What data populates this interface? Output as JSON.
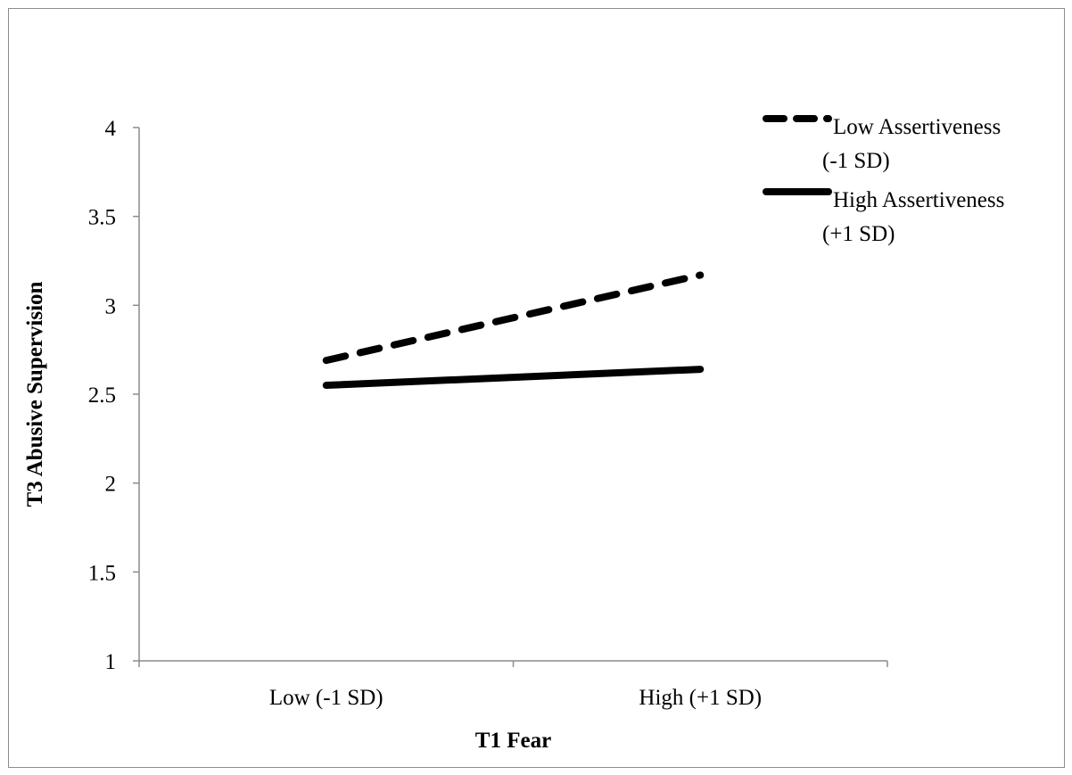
{
  "chart_data": {
    "type": "line",
    "title": "",
    "xlabel": "T1 Fear",
    "ylabel": "T3 Abusive Supervision",
    "categories": [
      "Low (-1 SD)",
      "High (+1 SD)"
    ],
    "ylim": [
      1,
      4
    ],
    "yticks": [
      "1",
      "1.5",
      "2",
      "2.5",
      "3",
      "3.5",
      "4"
    ],
    "yticks_values": [
      1,
      1.5,
      2,
      2.5,
      3,
      3.5,
      4
    ],
    "grid": false,
    "legend_position": "top-right",
    "series": [
      {
        "name": "Low Assertiveness (-1 SD)",
        "name_lines": [
          "Low Assertiveness",
          "(-1 SD)"
        ],
        "values": [
          2.69,
          3.17
        ],
        "style": "dashed",
        "color": "#000000"
      },
      {
        "name": "High Assertiveness (+1 SD)",
        "name_lines": [
          "High Assertiveness",
          "(+1 SD)"
        ],
        "values": [
          2.55,
          2.64
        ],
        "style": "solid",
        "color": "#000000"
      }
    ]
  }
}
